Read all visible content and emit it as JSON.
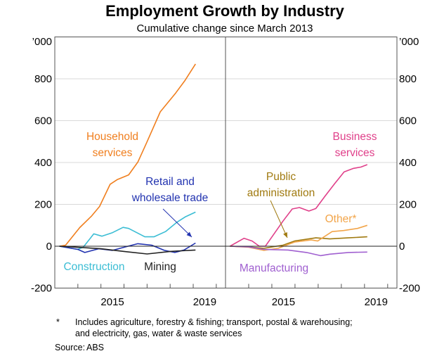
{
  "chart_data": {
    "type": "line",
    "title": "Employment Growth by Industry",
    "subtitle": "Cumulative change since March 2013",
    "yunit": "’000",
    "ylim": [
      -200,
      1000
    ],
    "yticks": [
      -200,
      0,
      200,
      400,
      600,
      800
    ],
    "xlim": [
      2013,
      2020.4
    ],
    "xtick_labels": [
      "2015",
      "2019"
    ],
    "grid": true,
    "panels": [
      {
        "series": [
          {
            "name": "Household services",
            "color": "#f07f1f",
            "x": [
              2013.2,
              2013.47,
              2014.08,
              2014.6,
              2014.94,
              2015.4,
              2015.7,
              2016.2,
              2016.6,
              2016.97,
              2017.57,
              2018.24,
              2018.65,
              2019.1
            ],
            "y": [
              0,
              5,
              89,
              145,
              190,
              296,
              318,
              341,
              402,
              492,
              642,
              732,
              793,
              871
            ]
          },
          {
            "name": "Construction",
            "color": "#3bbdd4",
            "x": [
              2013.2,
              2013.98,
              2014.23,
              2014.69,
              2015.04,
              2015.5,
              2015.96,
              2016.2,
              2016.9,
              2017.3,
              2017.8,
              2018.3,
              2018.65,
              2019.1
            ],
            "y": [
              0,
              -15,
              -5,
              59,
              48,
              65,
              90,
              85,
              45,
              45,
              70,
              115,
              140,
              163
            ]
          },
          {
            "name": "Retail and wholesale trade",
            "color": "#2233b0",
            "x": [
              2013.2,
              2014.0,
              2014.3,
              2014.9,
              2015.5,
              2016.0,
              2016.6,
              2017.2,
              2017.75,
              2018.2,
              2018.6,
              2019.1
            ],
            "y": [
              0,
              -15,
              -30,
              -12,
              -20,
              -5,
              12,
              5,
              -20,
              -30,
              -18,
              15
            ]
          },
          {
            "name": "Mining",
            "color": "#222222",
            "x": [
              2013.2,
              2014.0,
              2015.0,
              2016.0,
              2017.0,
              2018.0,
              2019.1
            ],
            "y": [
              0,
              -5,
              -12,
              -25,
              -37,
              -25,
              -18
            ]
          }
        ],
        "labels": [
          {
            "series": "Household services",
            "lines": [
              "Household",
              "services"
            ]
          },
          {
            "series": "Retail and wholesale trade",
            "lines": [
              "Retail and",
              "wholesale trade"
            ]
          },
          {
            "series": "Construction",
            "lines": [
              "Construction"
            ]
          },
          {
            "series": "Mining",
            "lines": [
              "Mining"
            ]
          }
        ]
      },
      {
        "series": [
          {
            "name": "Business services",
            "color": "#e0408a",
            "x": [
              2013.19,
              2013.8,
              2014.15,
              2014.46,
              2014.72,
              2015.07,
              2015.48,
              2015.88,
              2016.19,
              2016.6,
              2016.9,
              2017.3,
              2017.72,
              2018.12,
              2018.53,
              2018.84,
              2019.12
            ],
            "y": [
              0,
              38,
              25,
              0,
              0,
              55,
              120,
              178,
              185,
              168,
              180,
              240,
              300,
              355,
              372,
              378,
              390
            ]
          },
          {
            "name": "Public administration",
            "color": "#a07a10",
            "x": [
              2013.19,
              2014.0,
              2014.65,
              2015.48,
              2015.98,
              2016.9,
              2017.5,
              2018.3,
              2019.12
            ],
            "y": [
              0,
              -3,
              -10,
              5,
              25,
              40,
              35,
              40,
              45
            ]
          },
          {
            "name": "Other*",
            "color": "#f2a54a",
            "x": [
              2013.19,
              2014.0,
              2014.65,
              2015.27,
              2015.98,
              2016.7,
              2016.98,
              2017.6,
              2018.1,
              2018.7,
              2019.12
            ],
            "y": [
              0,
              -5,
              -20,
              -10,
              20,
              30,
              25,
              70,
              75,
              85,
              100
            ]
          },
          {
            "name": "Manufacturing",
            "color": "#a060d0",
            "x": [
              2013.19,
              2014.0,
              2014.65,
              2015.7,
              2016.5,
              2017.1,
              2017.5,
              2018.3,
              2019.12
            ],
            "y": [
              0,
              -3,
              -15,
              -18,
              -30,
              -45,
              -38,
              -30,
              -28
            ]
          }
        ],
        "labels": [
          {
            "series": "Business services",
            "lines": [
              "Business",
              "services"
            ]
          },
          {
            "series": "Public administration",
            "lines": [
              "Public",
              "administration"
            ]
          },
          {
            "series": "Other*",
            "lines": [
              "Other*"
            ]
          },
          {
            "series": "Manufacturing",
            "lines": [
              "Manufacturing"
            ]
          }
        ]
      }
    ]
  },
  "footnote": {
    "marker": "*",
    "line1": "Includes agriculture, forestry & fishing; transport, postal & warehousing;",
    "line2": "and electricity, gas, water & waste services"
  },
  "source": {
    "label": "Source:",
    "value": "ABS"
  }
}
